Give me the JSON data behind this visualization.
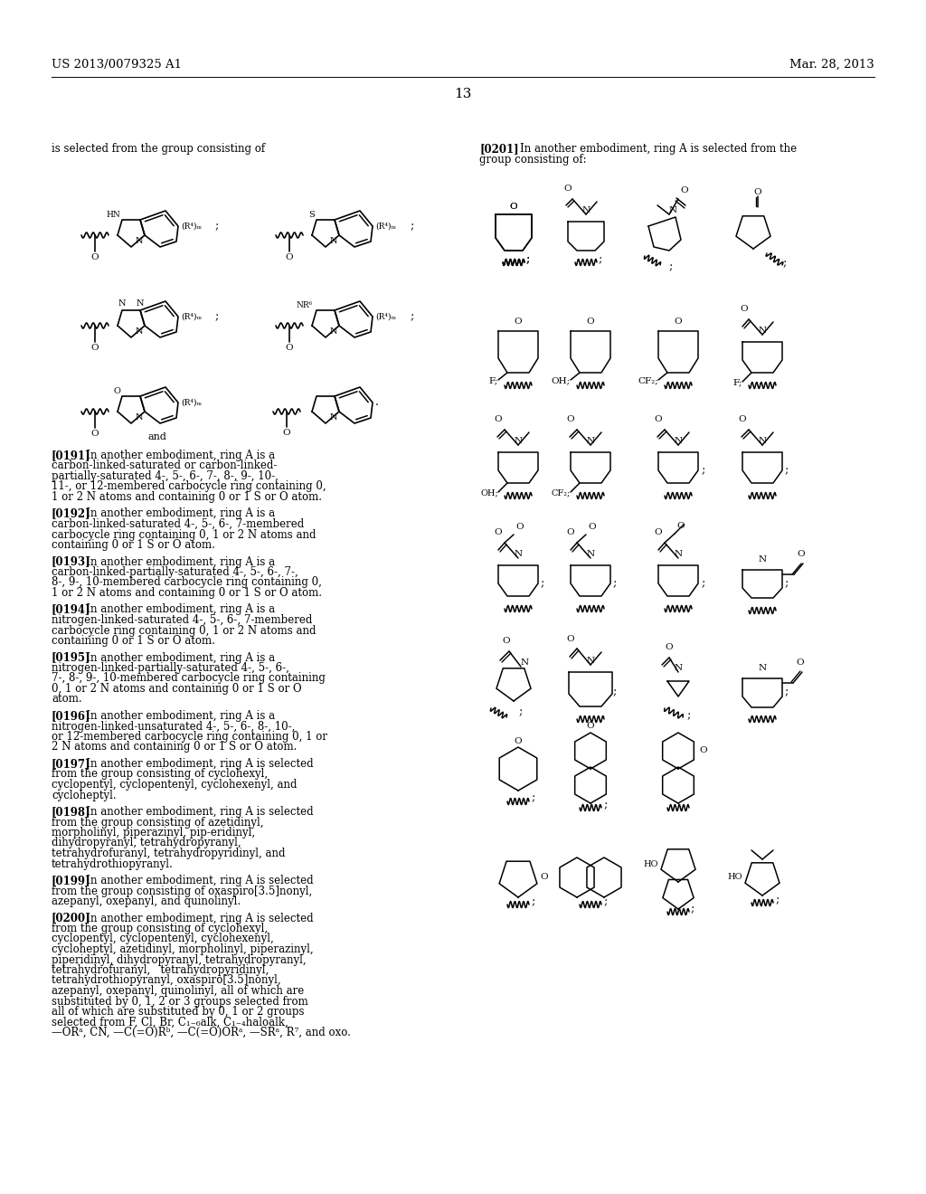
{
  "bg": "#ffffff",
  "header_left": "US 2013/0079325 A1",
  "header_right": "Mar. 28, 2013",
  "page_num": "13",
  "left_intro": "is selected from the group consisting of",
  "paragraphs": [
    {
      "bold": "[0191]",
      "text": "   In another embodiment, ring A is a carbon-linked-saturated or carbon-linked-partially-saturated 4-, 5-, 6-, 7-, 8-, 9-, 10-, 11-, or 12-membered carbocycle ring containing 0, 1 or 2 N atoms and containing 0 or 1 S or O atom."
    },
    {
      "bold": "[0192]",
      "text": "   In another embodiment, ring A is a carbon-linked-saturated 4-, 5-, 6-, 7-membered carbocycle ring containing 0, 1 or 2 N atoms and containing 0 or 1 S or O atom."
    },
    {
      "bold": "[0193]",
      "text": "   In another embodiment, ring A is a carbon-linked-partially-saturated 4-, 5-, 6-, 7-, 8-, 9-, 10-membered carbocycle ring containing 0, 1 or 2 N atoms and containing 0 or 1 S or O atom."
    },
    {
      "bold": "[0194]",
      "text": "   In another embodiment, ring A is a nitrogen-linked-saturated 4-, 5-, 6-, 7-membered carbocycle ring containing 0, 1 or 2 N atoms and containing 0 or 1 S or O atom."
    },
    {
      "bold": "[0195]",
      "text": "   In another embodiment, ring A is a nitrogen-linked-partially-saturated 4-, 5-, 6-, 7-, 8-, 9-, 10-membered carbocycle ring containing 0, 1 or 2 N atoms and containing 0 or 1 S or O atom."
    },
    {
      "bold": "[0196]",
      "text": "   In another embodiment, ring A is a nitrogen-linked-unsaturated 4-, 5-, 6-, 8-, 10-, or 12-membered carbocycle ring containing 0, 1 or 2 N atoms and containing 0 or 1 S or O atom."
    },
    {
      "bold": "[0197]",
      "text": "   In another embodiment, ring A is selected from the group consisting of cyclohexyl, cyclopentyl, cyclopentenyl, cyclohexenyl, and cycloheptyl."
    },
    {
      "bold": "[0198]",
      "text": "   In another embodiment, ring A is selected from the group consisting of azetidinyl, morpholinyl, piperazinyl, pip-eridinyl, dihydropyranyl, tetrahydropyranyl, tetrahydrofuranyl, tetrahydropyridinyl, and tetrahydrothiopyranyl."
    },
    {
      "bold": "[0199]",
      "text": "   In another embodiment, ring A is selected from the group consisting of oxaspiro[3.5]nonyl, azepanyl, oxepanyl, and quinolinyl."
    },
    {
      "bold": "[0200]",
      "text": "   In another embodiment, ring A is selected from the group consisting of cyclohexyl, cyclopentyl, cyclopentenyl, cyclohexenyl, cycloheptyl, azetidinyl, morpholinyl, piperazinyl, piperidinyl, dihydropyranyl, tetrahydropyranyl, tetrahydrofuranyl,   tetrahydropyridinyl,   tetrahydrothiopyranyl, oxaspiro[3.5]nonyl, azepanyl, oxepanyl, quinolinyl, all of which are substituted by 0, 1, 2 or 3 groups selected from all of which are substituted by 0, 1 or 2 groups selected from F, Cl, Br, C₁₋₆alk, C₁₋₄haloalk, —ORᵃ, CN, —C(=O)Rᵇ, —C(=O)ORᵃ, —SRᵃ, R⁷, and oxo."
    }
  ]
}
